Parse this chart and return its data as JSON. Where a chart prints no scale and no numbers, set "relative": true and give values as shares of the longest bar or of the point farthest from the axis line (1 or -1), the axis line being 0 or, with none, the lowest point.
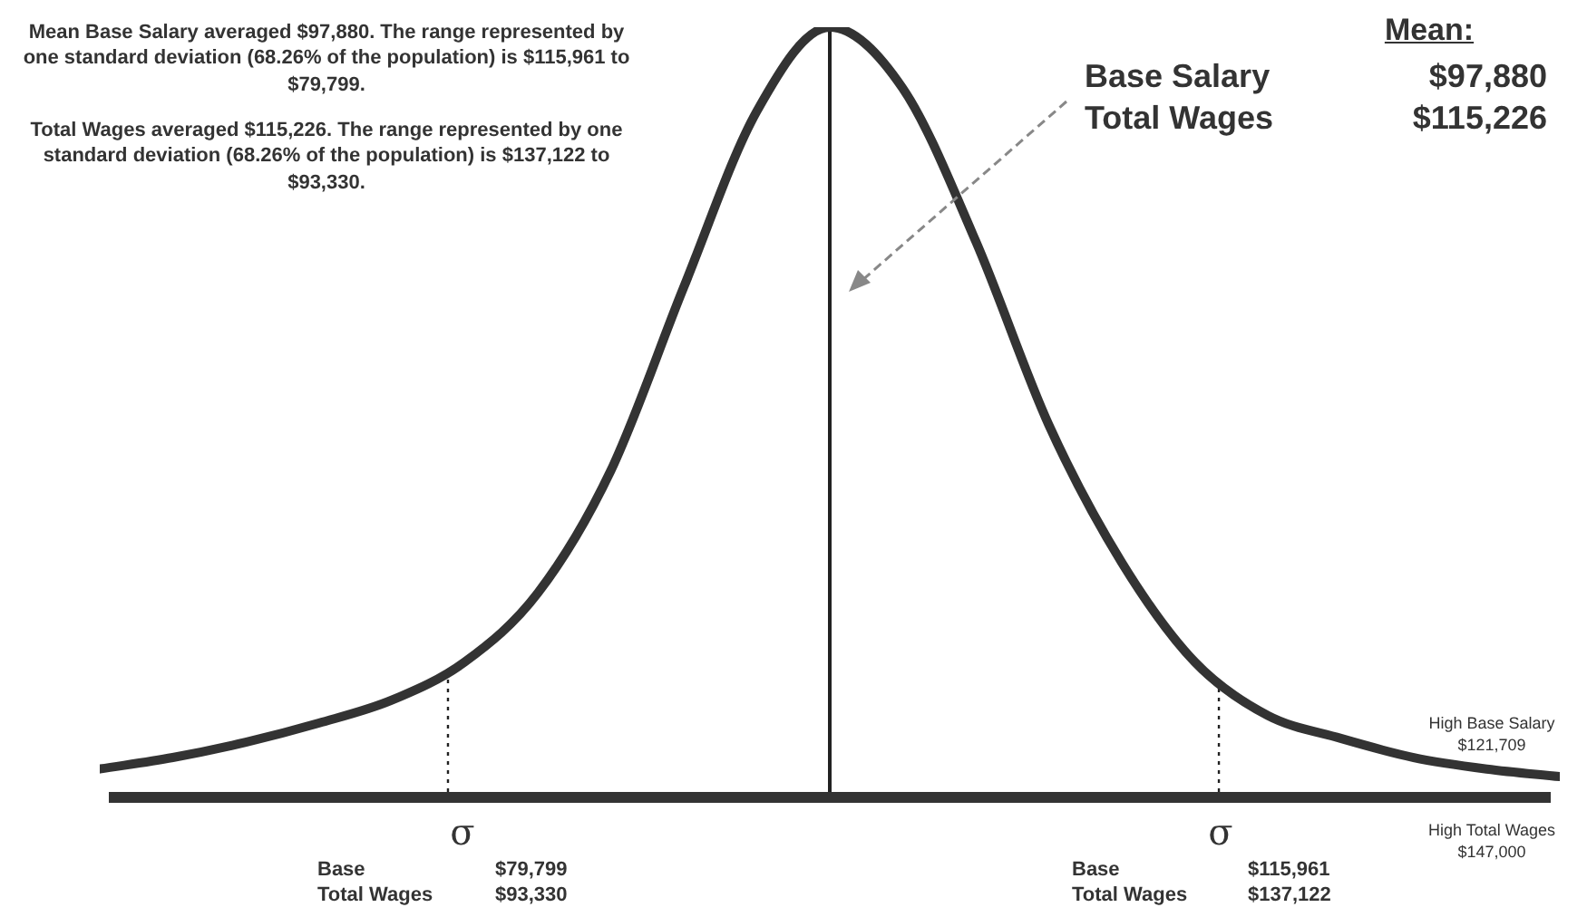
{
  "chart_data": {
    "type": "line",
    "relative": true,
    "legend": false,
    "marker": "none",
    "line_style": "solid",
    "categories": [
      null,
      null,
      null,
      null,
      null,
      null,
      null,
      null,
      null,
      null,
      null,
      null,
      null,
      null,
      null,
      null,
      null,
      null,
      null,
      null,
      null
    ],
    "series": [
      {
        "color": "#333333",
        "values": [
          0.03,
          0.045,
          0.065,
          0.09,
          0.12,
          0.17,
          0.26,
          0.42,
          0.66,
          0.89,
          1,
          0.92,
          0.72,
          0.48,
          0.3,
          0.17,
          0.1,
          0.07,
          0.045,
          0.03,
          0.02
        ]
      }
    ],
    "annotations": [
      "σ",
      "σ",
      "Mean Base Salary averaged $97,880.  The range represented by one standard deviation (68.26% of the population) is $115,961 to $79,799.",
      "Total Wages averaged $115,226.  The range represented by one standard deviation (68.26% of the population) is $137,122 to $93,330.",
      "Mean:",
      "Base Salary",
      "$97,880",
      "Total Wages",
      "$115,226",
      "Base",
      "$79,799",
      "Total Wages",
      "$93,330",
      "Base",
      "$115,961",
      "Total Wages",
      "$137,122",
      "High Base Salary $121,709",
      "High Total Wages $147,000"
    ]
  }
}
